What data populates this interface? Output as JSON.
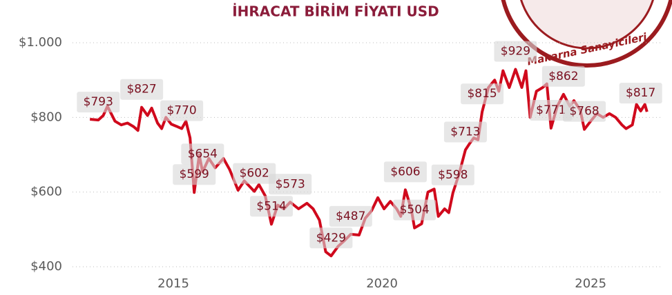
{
  "chart_data": {
    "type": "line",
    "title": "İHRACAT BİRİM FİYATI USD",
    "logo_text": "Makarna Sanayicileri",
    "color": "#d0091c",
    "xlim": [
      2012.5,
      2026.95
    ],
    "ylim": [
      400,
      1000
    ],
    "xticks": [
      2015,
      2020,
      2025
    ],
    "yticks": [
      {
        "value": 400,
        "label": "$400"
      },
      {
        "value": 600,
        "label": "$600"
      },
      {
        "value": 800,
        "label": "$800"
      },
      {
        "value": 1000,
        "label": "$1.000"
      }
    ],
    "grid": true,
    "x": [
      2013.0,
      2013.2,
      2013.32,
      2013.42,
      2013.6,
      2013.75,
      2013.9,
      2014.05,
      2014.15,
      2014.24,
      2014.38,
      2014.48,
      2014.62,
      2014.72,
      2014.82,
      2014.95,
      2015.1,
      2015.2,
      2015.3,
      2015.4,
      2015.5,
      2015.62,
      2015.7,
      2015.85,
      2016.0,
      2016.2,
      2016.35,
      2016.55,
      2016.7,
      2016.94,
      2017.05,
      2017.2,
      2017.35,
      2017.5,
      2017.65,
      2017.8,
      2018.0,
      2018.2,
      2018.35,
      2018.5,
      2018.65,
      2018.78,
      2018.95,
      2019.1,
      2019.25,
      2019.45,
      2019.6,
      2019.75,
      2019.9,
      2020.05,
      2020.2,
      2020.35,
      2020.45,
      2020.56,
      2020.7,
      2020.78,
      2020.95,
      2021.1,
      2021.25,
      2021.35,
      2021.5,
      2021.6,
      2021.7,
      2021.85,
      2022.0,
      2022.1,
      2022.2,
      2022.3,
      2022.4,
      2022.55,
      2022.7,
      2022.8,
      2022.9,
      2023.05,
      2023.2,
      2023.35,
      2023.45,
      2023.55,
      2023.7,
      2023.85,
      2023.95,
      2024.05,
      2024.2,
      2024.35,
      2024.5,
      2024.6,
      2024.75,
      2024.85,
      2025.0,
      2025.15,
      2025.3,
      2025.45,
      2025.6,
      2025.75,
      2025.85,
      2026.0,
      2026.1,
      2026.2,
      2026.3,
      2026.35
    ],
    "values": [
      795,
      793,
      805,
      830,
      790,
      780,
      785,
      775,
      765,
      827,
      805,
      825,
      785,
      770,
      800,
      782,
      775,
      770,
      790,
      745,
      599,
      700,
      654,
      690,
      665,
      690,
      660,
      605,
      630,
      602,
      620,
      590,
      514,
      565,
      555,
      573,
      555,
      570,
      555,
      525,
      440,
      429,
      455,
      470,
      487,
      485,
      530,
      550,
      585,
      555,
      575,
      555,
      535,
      606,
      555,
      504,
      515,
      600,
      608,
      535,
      555,
      545,
      598,
      650,
      713,
      730,
      745,
      740,
      815,
      880,
      900,
      870,
      925,
      880,
      929,
      880,
      925,
      800,
      870,
      880,
      890,
      771,
      830,
      862,
      830,
      845,
      820,
      768,
      790,
      810,
      800,
      810,
      800,
      780,
      770,
      780,
      835,
      817,
      835,
      815
    ],
    "value_labels": [
      null,
      "$793",
      null,
      null,
      null,
      null,
      null,
      null,
      null,
      "$827",
      null,
      null,
      null,
      null,
      null,
      null,
      null,
      "$770",
      null,
      null,
      "$599",
      null,
      "$654",
      null,
      null,
      null,
      null,
      null,
      null,
      "$602",
      null,
      null,
      "$514",
      null,
      null,
      "$573",
      null,
      null,
      null,
      null,
      null,
      "$429",
      null,
      null,
      "$487",
      null,
      null,
      null,
      null,
      null,
      null,
      null,
      null,
      "$606",
      null,
      "$504",
      null,
      null,
      null,
      null,
      null,
      null,
      "$598",
      null,
      "$713",
      null,
      null,
      null,
      "$815",
      null,
      null,
      null,
      null,
      null,
      "$929",
      null,
      null,
      null,
      null,
      null,
      null,
      "$771",
      null,
      "$862",
      null,
      null,
      null,
      "$768",
      null,
      null,
      null,
      null,
      null,
      null,
      null,
      null,
      null,
      "$817",
      null,
      null
    ]
  }
}
